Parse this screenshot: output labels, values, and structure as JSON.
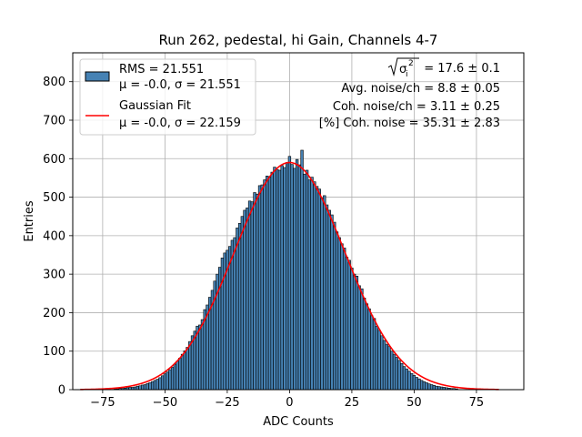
{
  "chart_data": {
    "type": "bar",
    "title": "Run 262, pedestal, hi Gain, Channels 4-7",
    "xlabel": "ADC Counts",
    "ylabel": "Entries",
    "xlim": [
      -87,
      94
    ],
    "ylim": [
      0,
      875
    ],
    "xticks": [
      -75,
      -50,
      -25,
      0,
      25,
      50,
      75
    ],
    "xtick_labels": [
      "−75",
      "−50",
      "−25",
      "0",
      "25",
      "50",
      "75"
    ],
    "yticks": [
      0,
      100,
      200,
      300,
      400,
      500,
      600,
      700,
      800
    ],
    "ytick_labels": [
      "0",
      "100",
      "200",
      "300",
      "400",
      "500",
      "600",
      "700",
      "800"
    ],
    "grid": true,
    "legend_position": "top-left",
    "bar_color": "#4682b4",
    "fit_color": "#ff0000",
    "histogram": {
      "name": "RMS = 21.551",
      "sublabel": "μ = -0.0, σ = 21.551",
      "bin_width": 1,
      "bins": [
        {
          "x": -70,
          "y": 2
        },
        {
          "x": -69,
          "y": 2
        },
        {
          "x": -68,
          "y": 3
        },
        {
          "x": -67,
          "y": 3
        },
        {
          "x": -66,
          "y": 4
        },
        {
          "x": -65,
          "y": 5
        },
        {
          "x": -64,
          "y": 6
        },
        {
          "x": -63,
          "y": 6
        },
        {
          "x": -62,
          "y": 7
        },
        {
          "x": -61,
          "y": 9
        },
        {
          "x": -60,
          "y": 10
        },
        {
          "x": -59,
          "y": 12
        },
        {
          "x": -58,
          "y": 13
        },
        {
          "x": -57,
          "y": 16
        },
        {
          "x": -56,
          "y": 18
        },
        {
          "x": -55,
          "y": 21
        },
        {
          "x": -54,
          "y": 24
        },
        {
          "x": -53,
          "y": 27
        },
        {
          "x": -52,
          "y": 31
        },
        {
          "x": -51,
          "y": 36
        },
        {
          "x": -50,
          "y": 41
        },
        {
          "x": -49,
          "y": 46
        },
        {
          "x": -48,
          "y": 52
        },
        {
          "x": -47,
          "y": 58
        },
        {
          "x": -46,
          "y": 66
        },
        {
          "x": -45,
          "y": 74
        },
        {
          "x": -44,
          "y": 82
        },
        {
          "x": -43,
          "y": 92
        },
        {
          "x": -42,
          "y": 101
        },
        {
          "x": -41,
          "y": 110
        },
        {
          "x": -40,
          "y": 125
        },
        {
          "x": -39,
          "y": 140
        },
        {
          "x": -38,
          "y": 152
        },
        {
          "x": -37,
          "y": 165
        },
        {
          "x": -36,
          "y": 168
        },
        {
          "x": -35,
          "y": 182
        },
        {
          "x": -34,
          "y": 208
        },
        {
          "x": -33,
          "y": 220
        },
        {
          "x": -32,
          "y": 240
        },
        {
          "x": -31,
          "y": 258
        },
        {
          "x": -30,
          "y": 282
        },
        {
          "x": -29,
          "y": 300
        },
        {
          "x": -28,
          "y": 318
        },
        {
          "x": -27,
          "y": 342
        },
        {
          "x": -26,
          "y": 355
        },
        {
          "x": -25,
          "y": 362
        },
        {
          "x": -24,
          "y": 372
        },
        {
          "x": -23,
          "y": 388
        },
        {
          "x": -22,
          "y": 395
        },
        {
          "x": -21,
          "y": 420
        },
        {
          "x": -20,
          "y": 432
        },
        {
          "x": -19,
          "y": 450
        },
        {
          "x": -18,
          "y": 466
        },
        {
          "x": -17,
          "y": 472
        },
        {
          "x": -16,
          "y": 490
        },
        {
          "x": -15,
          "y": 488
        },
        {
          "x": -14,
          "y": 512
        },
        {
          "x": -13,
          "y": 508
        },
        {
          "x": -12,
          "y": 530
        },
        {
          "x": -11,
          "y": 532
        },
        {
          "x": -10,
          "y": 545
        },
        {
          "x": -9,
          "y": 555
        },
        {
          "x": -8,
          "y": 552
        },
        {
          "x": -7,
          "y": 565
        },
        {
          "x": -6,
          "y": 578
        },
        {
          "x": -5,
          "y": 572
        },
        {
          "x": -4,
          "y": 570
        },
        {
          "x": -3,
          "y": 582
        },
        {
          "x": -2,
          "y": 577
        },
        {
          "x": -1,
          "y": 590
        },
        {
          "x": 0,
          "y": 606
        },
        {
          "x": 1,
          "y": 585
        },
        {
          "x": 2,
          "y": 575
        },
        {
          "x": 3,
          "y": 598
        },
        {
          "x": 4,
          "y": 584
        },
        {
          "x": 5,
          "y": 622
        },
        {
          "x": 6,
          "y": 560
        },
        {
          "x": 7,
          "y": 570
        },
        {
          "x": 8,
          "y": 545
        },
        {
          "x": 9,
          "y": 552
        },
        {
          "x": 10,
          "y": 540
        },
        {
          "x": 11,
          "y": 528
        },
        {
          "x": 12,
          "y": 521
        },
        {
          "x": 13,
          "y": 498
        },
        {
          "x": 14,
          "y": 504
        },
        {
          "x": 15,
          "y": 480
        },
        {
          "x": 16,
          "y": 466
        },
        {
          "x": 17,
          "y": 454
        },
        {
          "x": 18,
          "y": 435
        },
        {
          "x": 19,
          "y": 410
        },
        {
          "x": 20,
          "y": 395
        },
        {
          "x": 21,
          "y": 379
        },
        {
          "x": 22,
          "y": 368
        },
        {
          "x": 23,
          "y": 344
        },
        {
          "x": 24,
          "y": 336
        },
        {
          "x": 25,
          "y": 316
        },
        {
          "x": 26,
          "y": 300
        },
        {
          "x": 27,
          "y": 295
        },
        {
          "x": 28,
          "y": 270
        },
        {
          "x": 29,
          "y": 262
        },
        {
          "x": 30,
          "y": 238
        },
        {
          "x": 31,
          "y": 223
        },
        {
          "x": 32,
          "y": 210
        },
        {
          "x": 33,
          "y": 192
        },
        {
          "x": 34,
          "y": 185
        },
        {
          "x": 35,
          "y": 165
        },
        {
          "x": 36,
          "y": 154
        },
        {
          "x": 37,
          "y": 140
        },
        {
          "x": 38,
          "y": 128
        },
        {
          "x": 39,
          "y": 118
        },
        {
          "x": 40,
          "y": 112
        },
        {
          "x": 41,
          "y": 100
        },
        {
          "x": 42,
          "y": 92
        },
        {
          "x": 43,
          "y": 84
        },
        {
          "x": 44,
          "y": 76
        },
        {
          "x": 45,
          "y": 68
        },
        {
          "x": 46,
          "y": 60
        },
        {
          "x": 47,
          "y": 54
        },
        {
          "x": 48,
          "y": 48
        },
        {
          "x": 49,
          "y": 42
        },
        {
          "x": 50,
          "y": 37
        },
        {
          "x": 51,
          "y": 32
        },
        {
          "x": 52,
          "y": 28
        },
        {
          "x": 53,
          "y": 24
        },
        {
          "x": 54,
          "y": 21
        },
        {
          "x": 55,
          "y": 18
        },
        {
          "x": 56,
          "y": 15
        },
        {
          "x": 57,
          "y": 13
        },
        {
          "x": 58,
          "y": 11
        },
        {
          "x": 59,
          "y": 9
        },
        {
          "x": 60,
          "y": 8
        },
        {
          "x": 61,
          "y": 7
        },
        {
          "x": 62,
          "y": 6
        },
        {
          "x": 63,
          "y": 5
        },
        {
          "x": 64,
          "y": 4
        },
        {
          "x": 65,
          "y": 3
        },
        {
          "x": 66,
          "y": 3
        },
        {
          "x": 67,
          "y": 2
        }
      ]
    },
    "fit": {
      "name": "Gaussian Fit",
      "sublabel": "μ = -0.0, σ = 22.159",
      "mu": 0.0,
      "sigma": 22.159,
      "amplitude": 590,
      "x_range": [
        -84,
        84
      ]
    },
    "annotations": {
      "line1_value": " = 17.6 ± 0.1",
      "line2": "Avg. noise/ch = 8.8 ± 0.05",
      "line3": "Coh. noise/ch = 3.11 ± 0.25",
      "line4": "[%] Coh. noise = 35.31 ± 2.83"
    }
  }
}
